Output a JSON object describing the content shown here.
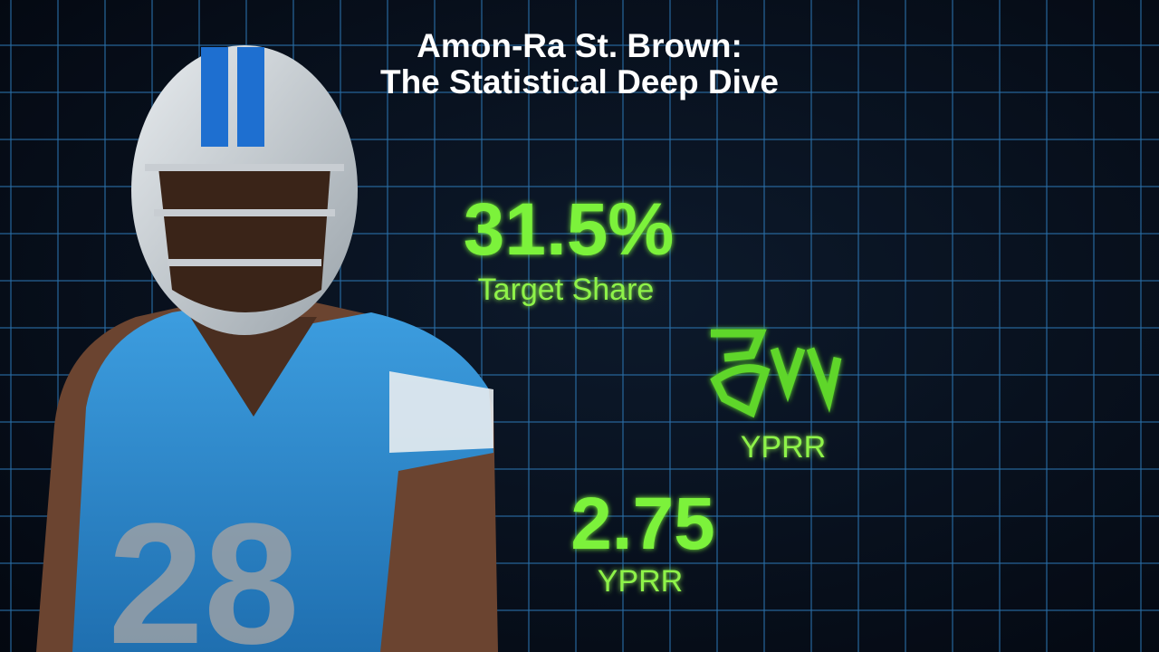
{
  "header": {
    "title_lines": [
      "Amon-Ra St. Brown:",
      "The Statistical Deep Dive"
    ]
  },
  "stats": [
    {
      "value": "31.5%",
      "label": "Target Share"
    },
    {
      "label": "YPRR"
    },
    {
      "value": "2.75",
      "label": "YPRR"
    }
  ],
  "player": {
    "jersey_number": "28"
  }
}
